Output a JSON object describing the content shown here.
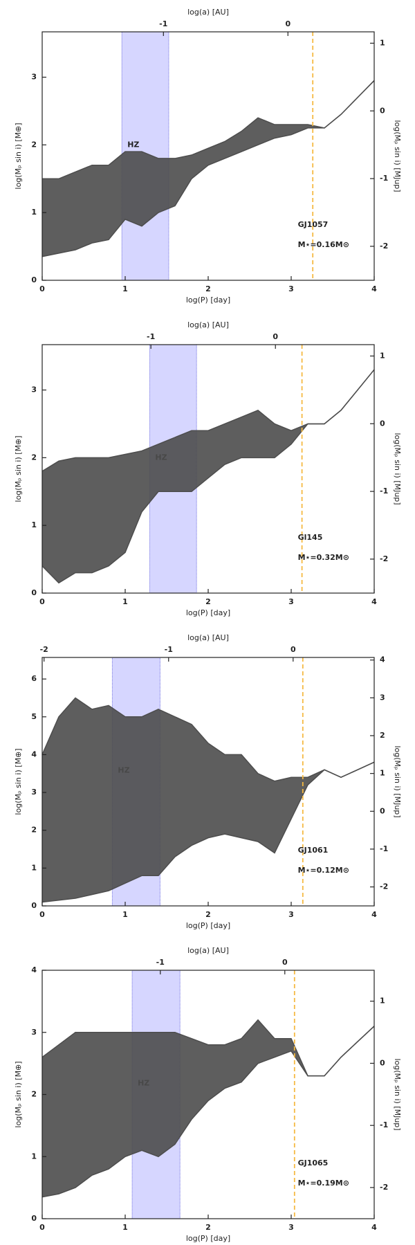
{
  "chart_data": [
    {
      "type": "line",
      "star": "GJ1057",
      "mass_label": "M⋆=0.16M⊙",
      "xlabel": "log(P) [day]",
      "x2label": "log(a) [AU]",
      "ylabel": "log(Mₚ sin i) [M⊕]",
      "y2label": "log(Mₚ sin i) [MJup]",
      "x": [
        0,
        0.2,
        0.4,
        0.6,
        0.8,
        1.0,
        1.2,
        1.4,
        1.6,
        1.8,
        2.0,
        2.2,
        2.4,
        2.6,
        2.8,
        3.0,
        3.2,
        3.4,
        3.6,
        3.8,
        4.0
      ],
      "series": [
        {
          "color": "#4d4d4d",
          "values": [
            1.5,
            1.5,
            1.6,
            1.7,
            1.7,
            1.9,
            1.9,
            1.8,
            1.8,
            1.85,
            1.95,
            2.05,
            2.2,
            2.4,
            2.3,
            2.3,
            2.3,
            2.25,
            2.45,
            2.7,
            2.95
          ]
        },
        {
          "color": "#4d4d4d",
          "values": [
            0.35,
            0.4,
            0.45,
            0.55,
            0.6,
            0.9,
            0.8,
            1.0,
            1.1,
            1.5,
            1.7,
            1.8,
            1.9,
            2.0,
            2.1,
            2.15,
            2.25,
            2.25,
            2.45,
            2.7,
            2.95
          ]
        }
      ],
      "xlim": [
        0,
        4
      ],
      "xticks": [
        0,
        1,
        2,
        3,
        4
      ],
      "x2lim": [
        -1.974,
        0.693
      ],
      "x2ticks": [
        -1,
        0
      ],
      "ylim": [
        0,
        3.67
      ],
      "yticks": [
        0,
        1,
        2,
        3
      ],
      "y2lim": [
        -2.502,
        1.168
      ],
      "y2ticks": [
        -2,
        -1,
        0,
        1
      ],
      "hz": [
        0.96,
        1.525
      ],
      "hz_label": "HZ",
      "hz_color": "#d6d6ff",
      "vline": 3.26,
      "vline_color": "#f5b942"
    },
    {
      "type": "line",
      "star": "Gl145",
      "mass_label": "M⋆=0.32M⊙",
      "xlabel": "log(P) [day]",
      "x2label": "log(a) [AU]",
      "ylabel": "log(Mₚ sin i) [M⊕]",
      "y2label": "log(Mₚ sin i) [MJup]",
      "x": [
        0,
        0.2,
        0.4,
        0.6,
        0.8,
        1.0,
        1.2,
        1.4,
        1.6,
        1.8,
        2.0,
        2.2,
        2.4,
        2.6,
        2.8,
        3.0,
        3.2,
        3.4,
        3.6,
        3.8,
        4.0
      ],
      "series": [
        {
          "color": "#4d4d4d",
          "values": [
            1.8,
            1.95,
            2.0,
            2.0,
            2.0,
            2.05,
            2.1,
            2.2,
            2.3,
            2.4,
            2.4,
            2.5,
            2.6,
            2.7,
            2.5,
            2.4,
            2.5,
            2.5,
            2.7,
            3.0,
            3.3
          ]
        },
        {
          "color": "#4d4d4d",
          "values": [
            0.4,
            0.15,
            0.3,
            0.3,
            0.4,
            0.6,
            1.2,
            1.5,
            1.5,
            1.5,
            1.7,
            1.9,
            2.0,
            2.0,
            2.0,
            2.2,
            2.5,
            2.5,
            2.7,
            3.0,
            3.3
          ]
        }
      ],
      "xlim": [
        0,
        4
      ],
      "xticks": [
        0,
        1,
        2,
        3,
        4
      ],
      "x2lim": [
        -1.873,
        0.793
      ],
      "x2ticks": [
        -1,
        0
      ],
      "ylim": [
        0,
        3.67
      ],
      "yticks": [
        0,
        1,
        2,
        3
      ],
      "y2lim": [
        -2.502,
        1.168
      ],
      "y2ticks": [
        -2,
        -1,
        0,
        1
      ],
      "hz": [
        1.295,
        1.86
      ],
      "hz_label": "HZ",
      "hz_color": "#d6d6ff",
      "vline": 3.13,
      "vline_color": "#f5b942"
    },
    {
      "type": "line",
      "star": "GJ1061",
      "mass_label": "M⋆=0.12M⊙",
      "xlabel": "log(P) [day]",
      "x2label": "log(a) [AU]",
      "ylabel": "log(Mₚ sin i) [M⊕]",
      "y2label": "log(Mₚ sin i) [MJup]",
      "x": [
        0,
        0.2,
        0.4,
        0.6,
        0.8,
        1.0,
        1.2,
        1.4,
        1.6,
        1.8,
        2.0,
        2.2,
        2.4,
        2.6,
        2.8,
        3.0,
        3.2,
        3.4,
        3.6,
        3.8,
        4.0
      ],
      "series": [
        {
          "color": "#4d4d4d",
          "values": [
            4.0,
            5.0,
            5.5,
            5.2,
            5.3,
            5.0,
            5.0,
            5.2,
            5.0,
            4.8,
            4.3,
            4.0,
            4.0,
            3.5,
            3.3,
            3.4,
            3.4,
            3.6,
            3.4,
            3.6,
            3.8
          ]
        },
        {
          "color": "#4d4d4d",
          "values": [
            0.1,
            0.15,
            0.2,
            0.3,
            0.4,
            0.6,
            0.8,
            0.8,
            1.3,
            1.6,
            1.8,
            1.9,
            1.8,
            1.7,
            1.4,
            2.3,
            3.2,
            3.6,
            3.4,
            3.6,
            3.8
          ]
        }
      ],
      "xlim": [
        0,
        4
      ],
      "xticks": [
        0,
        1,
        2,
        3,
        4
      ],
      "x2lim": [
        -2.015,
        0.651
      ],
      "x2ticks": [
        -2,
        -1,
        0
      ],
      "ylim": [
        0,
        6.57
      ],
      "yticks": [
        0,
        1,
        2,
        3,
        4,
        5,
        6
      ],
      "y2lim": [
        -2.502,
        4.068
      ],
      "y2ticks": [
        -2,
        -1,
        0,
        1,
        2,
        3,
        4
      ],
      "hz": [
        0.845,
        1.42
      ],
      "hz_label": "HZ",
      "hz_color": "#d6d6ff",
      "vline": 3.14,
      "vline_color": "#f5b942"
    },
    {
      "type": "line",
      "star": "GJ1065",
      "mass_label": "M⋆=0.19M⊙",
      "xlabel": "log(P) [day]",
      "x2label": "log(a) [AU]",
      "ylabel": "log(Mₚ sin i) [M⊕]",
      "y2label": "log(Mₚ sin i) [MJup]",
      "x": [
        0,
        0.2,
        0.4,
        0.6,
        0.8,
        1.0,
        1.2,
        1.4,
        1.6,
        1.8,
        2.0,
        2.2,
        2.4,
        2.6,
        2.8,
        3.0,
        3.2,
        3.4,
        3.6,
        3.8,
        4.0
      ],
      "series": [
        {
          "color": "#4d4d4d",
          "values": [
            2.6,
            2.8,
            3.0,
            3.0,
            3.0,
            3.0,
            3.0,
            3.0,
            3.0,
            2.9,
            2.8,
            2.8,
            2.9,
            3.2,
            2.9,
            2.9,
            2.3,
            2.3,
            2.6,
            2.85,
            3.1
          ]
        },
        {
          "color": "#4d4d4d",
          "values": [
            0.35,
            0.4,
            0.5,
            0.7,
            0.8,
            1.0,
            1.1,
            1.0,
            1.2,
            1.6,
            1.9,
            2.1,
            2.2,
            2.5,
            2.6,
            2.7,
            2.3,
            2.3,
            2.6,
            2.85,
            3.1
          ]
        }
      ],
      "xlim": [
        0,
        4
      ],
      "xticks": [
        0,
        1,
        2,
        3,
        4
      ],
      "x2lim": [
        -1.949,
        0.718
      ],
      "x2ticks": [
        -1,
        0
      ],
      "ylim": [
        0,
        4
      ],
      "yticks": [
        0,
        1,
        2,
        3,
        4
      ],
      "y2lim": [
        -2.502,
        1.498
      ],
      "y2ticks": [
        -2,
        -1,
        0,
        1
      ],
      "hz": [
        1.084,
        1.66
      ],
      "hz_label": "HZ",
      "hz_color": "#d6d6ff",
      "vline": 3.04,
      "vline_color": "#f5b942"
    }
  ]
}
